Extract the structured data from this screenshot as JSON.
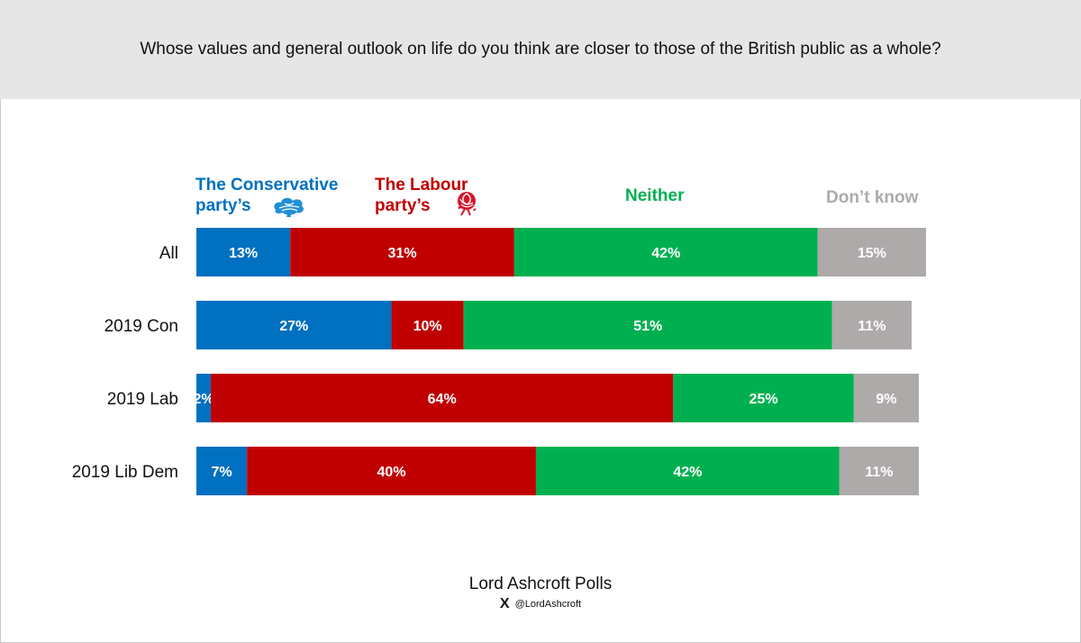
{
  "title": "Whose values and general outlook on life do you think are closer to those of the British public as a whole?",
  "colors": {
    "conservative": "#0070c0",
    "labour": "#c00000",
    "neither": "#00b050",
    "dont_know": "#aeaaaa",
    "header_bg": "#e6e6e6"
  },
  "legend": {
    "conservative": {
      "line1": "The Conservative",
      "line2": "party’s",
      "icon": "conservative-tree-icon"
    },
    "labour": {
      "line1": "The Labour",
      "line2": "party’s",
      "icon": "labour-rose-icon"
    },
    "neither": {
      "label": "Neither"
    },
    "dont_know": {
      "label": "Don’t know"
    }
  },
  "chart_data": {
    "type": "bar",
    "orientation": "horizontal",
    "stacked": true,
    "title": "Whose values and general outlook on life do you think are closer to those of the British public as a whole?",
    "categories": [
      "All",
      "2019 Con",
      "2019 Lab",
      "2019 Lib Dem"
    ],
    "series": [
      {
        "name": "The Conservative party’s",
        "key": "conservative",
        "values": [
          13,
          27,
          2,
          7
        ]
      },
      {
        "name": "The Labour party’s",
        "key": "labour",
        "values": [
          31,
          10,
          64,
          40
        ]
      },
      {
        "name": "Neither",
        "key": "neither",
        "values": [
          42,
          51,
          25,
          42
        ]
      },
      {
        "name": "Don’t know",
        "key": "dont_know",
        "values": [
          15,
          11,
          9,
          11
        ]
      }
    ],
    "value_suffix": "%",
    "xlim": [
      0,
      100
    ],
    "legend_position": "top"
  },
  "footer": {
    "source": "Lord Ashcroft Polls",
    "x_glyph": "X",
    "handle": "@LordAshcroft"
  }
}
